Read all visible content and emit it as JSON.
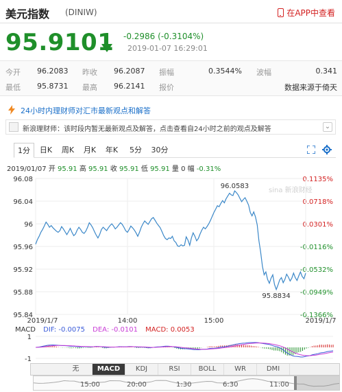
{
  "header": {
    "title": "美元指数",
    "code": "(DINIW)",
    "app_link": "在APP中查看"
  },
  "quote": {
    "price": "95.9101",
    "change": "-0.2986 (-0.3104%)",
    "timestamp": "2019-01-07 16:29:01",
    "colors": {
      "down": "#1f8f2a",
      "up": "#d32121",
      "line": "#3a87c8"
    }
  },
  "stats": {
    "open_label": "今开",
    "open": "96.2083",
    "prev_close_label": "昨收",
    "prev_close": "96.2087",
    "amplitude_label": "振幅",
    "amplitude": "0.3544%",
    "volatility_label": "波幅",
    "volatility": "0.341",
    "low_label": "最低",
    "low": "95.8731",
    "high_label": "最高",
    "high": "96.2141",
    "quote_label": "报价",
    "source": "数据来源于倚天"
  },
  "viewpoint": {
    "title": "24小时内理财师对汇市最新观点和解答",
    "news": "新浪理财师：该时段内暂无最新观点及解答，点击查看自24小时之前的观点及解答"
  },
  "tabs": [
    "1分",
    "日K",
    "周K",
    "月K",
    "年K",
    "5分",
    "30分"
  ],
  "active_tab": "1分",
  "ohlc": {
    "date": "2019/01/07",
    "open_label": "开",
    "open": "95.91",
    "high_label": "高",
    "high": "95.91",
    "close_label": "收",
    "close": "95.91",
    "low_label": "低",
    "low": "95.91",
    "volume_label": "量",
    "volume": "0",
    "range_label": "幅",
    "range": "-0.31%"
  },
  "chart_data": {
    "type": "line",
    "title": "",
    "ylim": [
      95.84,
      96.08
    ],
    "y_ticks_left": [
      "96.08",
      "96.04",
      "96",
      "95.96",
      "95.92",
      "95.88",
      "95.84"
    ],
    "y_ticks_right": [
      "0.1135%",
      "0.0718%",
      "0.0301%",
      "-0.0116%",
      "-0.0532%",
      "-0.0949%",
      "-0.1366%"
    ],
    "x_ticks": [
      "2019/1/7",
      "14:00",
      "15:00",
      "2019/1/7"
    ],
    "annotations": [
      {
        "text": "96.0583",
        "value": 96.0583
      },
      {
        "text": "95.8834",
        "value": 95.8834
      }
    ],
    "watermark": "sina 新浪财经",
    "series": [
      {
        "values": [
          95.964,
          95.972,
          95.978,
          95.985,
          95.99,
          95.996,
          96.003,
          95.999,
          95.994,
          95.997,
          95.993,
          95.99,
          95.987,
          95.985,
          95.988,
          95.995,
          95.991,
          95.986,
          95.981,
          95.986,
          95.992,
          95.985,
          95.979,
          95.982,
          95.989,
          95.994,
          95.99,
          95.985,
          95.983,
          95.987,
          95.994,
          96.002,
          95.998,
          95.993,
          95.986,
          95.98,
          95.975,
          95.981,
          95.99,
          95.994,
          95.991,
          95.988,
          95.993,
          95.997,
          96.0,
          95.996,
          95.991,
          95.994,
          95.998,
          96.002,
          95.999,
          95.994,
          95.988,
          95.985,
          95.99,
          95.996,
          95.993,
          95.989,
          95.984,
          95.978,
          95.985,
          95.994,
          96.0,
          96.005,
          96.002,
          95.999,
          96.004,
          96.009,
          96.011,
          96.006,
          96.001,
          95.997,
          95.993,
          95.986,
          95.979,
          95.974,
          95.972,
          95.975,
          95.974,
          95.978,
          95.97,
          95.967,
          95.961,
          95.96,
          95.963,
          95.961,
          95.962,
          95.977,
          95.971,
          95.962,
          95.975,
          95.984,
          95.978,
          95.97,
          95.974,
          95.982,
          95.989,
          95.994,
          95.991,
          95.995,
          96.0,
          96.006,
          96.013,
          96.02,
          96.026,
          96.032,
          96.03,
          96.036,
          96.041,
          96.037,
          96.044,
          96.049,
          96.054,
          96.051,
          96.05,
          96.058,
          96.055,
          96.051,
          96.045,
          96.039,
          96.043,
          96.046,
          96.04,
          96.033,
          96.02,
          96.014,
          96.021,
          96.012,
          95.998,
          95.97,
          95.95,
          95.925,
          95.91,
          95.915,
          95.902,
          95.895,
          95.904,
          95.91,
          95.893,
          95.884,
          95.892,
          95.901,
          95.905,
          95.896,
          95.902,
          95.911,
          95.906,
          95.899,
          95.904,
          95.913,
          95.905,
          95.9,
          95.908,
          95.915,
          95.907,
          95.903,
          95.913
        ]
      }
    ],
    "macd": {
      "label": "MACD",
      "dif_label": "DIF: -0.0075",
      "dea_label": "DEA: -0.0101",
      "macd_label": "MACD: 0.0053",
      "y_ticks": [
        "1",
        "-1"
      ],
      "dif_color": "#3a5bd9",
      "dea_color": "#c83bd6"
    }
  },
  "indicators": [
    "无",
    "MACD",
    "KDJ",
    "RSI",
    "BOLL",
    "WR",
    "DMI"
  ],
  "active_indicator": "MACD",
  "scroller": {
    "labels": [
      "15:00",
      "20:00",
      "1:30",
      "6:30",
      "11:00"
    ]
  }
}
